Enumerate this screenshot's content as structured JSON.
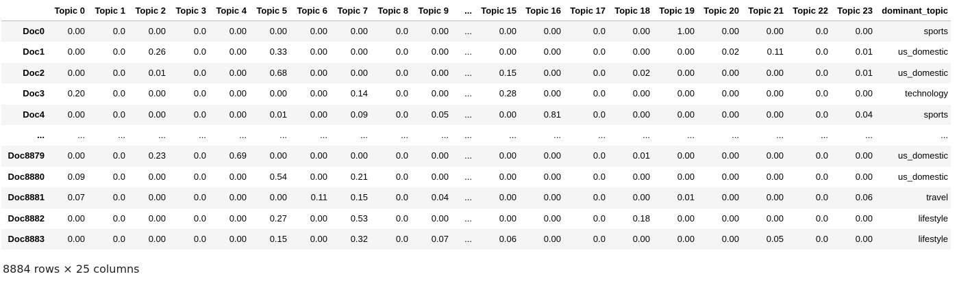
{
  "table": {
    "columns": [
      "",
      "Topic 0",
      "Topic 1",
      "Topic 2",
      "Topic 3",
      "Topic 4",
      "Topic 5",
      "Topic 6",
      "Topic 7",
      "Topic 8",
      "Topic 9",
      "...",
      "Topic 15",
      "Topic 16",
      "Topic 17",
      "Topic 18",
      "Topic 19",
      "Topic 20",
      "Topic 21",
      "Topic 22",
      "Topic 23",
      "dominant_topic"
    ],
    "rows": [
      [
        "Doc0",
        "0.00",
        "0.0",
        "0.00",
        "0.0",
        "0.00",
        "0.00",
        "0.00",
        "0.00",
        "0.0",
        "0.00",
        "...",
        "0.00",
        "0.00",
        "0.0",
        "0.00",
        "1.00",
        "0.00",
        "0.00",
        "0.0",
        "0.00",
        "sports"
      ],
      [
        "Doc1",
        "0.00",
        "0.0",
        "0.26",
        "0.0",
        "0.00",
        "0.33",
        "0.00",
        "0.00",
        "0.0",
        "0.00",
        "...",
        "0.00",
        "0.00",
        "0.0",
        "0.00",
        "0.00",
        "0.02",
        "0.11",
        "0.0",
        "0.01",
        "us_domestic"
      ],
      [
        "Doc2",
        "0.00",
        "0.0",
        "0.01",
        "0.0",
        "0.00",
        "0.68",
        "0.00",
        "0.00",
        "0.0",
        "0.00",
        "...",
        "0.15",
        "0.00",
        "0.0",
        "0.02",
        "0.00",
        "0.00",
        "0.00",
        "0.0",
        "0.01",
        "us_domestic"
      ],
      [
        "Doc3",
        "0.20",
        "0.0",
        "0.00",
        "0.0",
        "0.00",
        "0.00",
        "0.00",
        "0.14",
        "0.0",
        "0.00",
        "...",
        "0.28",
        "0.00",
        "0.0",
        "0.00",
        "0.00",
        "0.00",
        "0.00",
        "0.0",
        "0.00",
        "technology"
      ],
      [
        "Doc4",
        "0.00",
        "0.0",
        "0.00",
        "0.0",
        "0.00",
        "0.01",
        "0.00",
        "0.09",
        "0.0",
        "0.05",
        "...",
        "0.00",
        "0.81",
        "0.0",
        "0.00",
        "0.00",
        "0.00",
        "0.00",
        "0.0",
        "0.04",
        "sports"
      ],
      [
        "...",
        "...",
        "...",
        "...",
        "...",
        "...",
        "...",
        "...",
        "...",
        "...",
        "...",
        "...",
        "...",
        "...",
        "...",
        "...",
        "...",
        "...",
        "...",
        "...",
        "...",
        "..."
      ],
      [
        "Doc8879",
        "0.00",
        "0.0",
        "0.23",
        "0.0",
        "0.69",
        "0.00",
        "0.00",
        "0.00",
        "0.0",
        "0.00",
        "...",
        "0.00",
        "0.00",
        "0.0",
        "0.01",
        "0.00",
        "0.00",
        "0.00",
        "0.0",
        "0.00",
        "us_domestic"
      ],
      [
        "Doc8880",
        "0.09",
        "0.0",
        "0.00",
        "0.0",
        "0.00",
        "0.54",
        "0.00",
        "0.21",
        "0.0",
        "0.00",
        "...",
        "0.00",
        "0.00",
        "0.0",
        "0.00",
        "0.00",
        "0.00",
        "0.00",
        "0.0",
        "0.00",
        "us_domestic"
      ],
      [
        "Doc8881",
        "0.07",
        "0.0",
        "0.00",
        "0.0",
        "0.00",
        "0.00",
        "0.11",
        "0.15",
        "0.0",
        "0.04",
        "...",
        "0.00",
        "0.00",
        "0.0",
        "0.00",
        "0.01",
        "0.00",
        "0.00",
        "0.0",
        "0.06",
        "travel"
      ],
      [
        "Doc8882",
        "0.00",
        "0.0",
        "0.00",
        "0.0",
        "0.00",
        "0.27",
        "0.00",
        "0.53",
        "0.0",
        "0.00",
        "...",
        "0.00",
        "0.00",
        "0.0",
        "0.18",
        "0.00",
        "0.00",
        "0.00",
        "0.0",
        "0.00",
        "lifestyle"
      ],
      [
        "Doc8883",
        "0.00",
        "0.0",
        "0.00",
        "0.0",
        "0.00",
        "0.15",
        "0.00",
        "0.32",
        "0.0",
        "0.07",
        "...",
        "0.06",
        "0.00",
        "0.0",
        "0.00",
        "0.00",
        "0.00",
        "0.05",
        "0.0",
        "0.00",
        "lifestyle"
      ]
    ]
  },
  "summary": "8884 rows × 25 columns"
}
